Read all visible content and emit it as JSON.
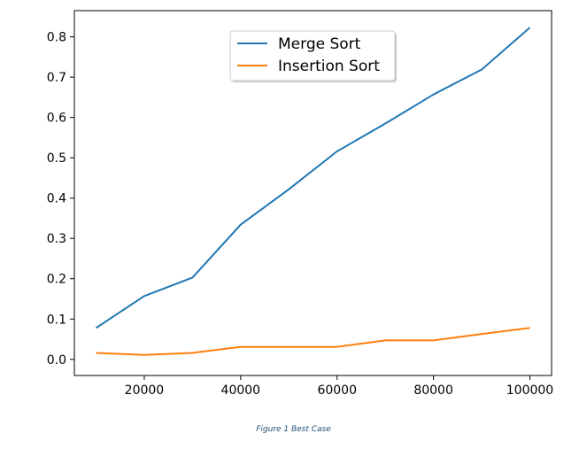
{
  "chart_data": {
    "type": "line",
    "title": "",
    "xlabel": "",
    "ylabel": "",
    "xlim": [
      5500,
      104500
    ],
    "ylim": [
      -0.04,
      0.865
    ],
    "x_ticks": [
      20000,
      40000,
      60000,
      80000,
      100000
    ],
    "y_ticks": [
      0.0,
      0.1,
      0.2,
      0.3,
      0.4,
      0.5,
      0.6,
      0.7,
      0.8
    ],
    "x_tick_labels": [
      "20000",
      "40000",
      "60000",
      "80000",
      "100000"
    ],
    "y_tick_labels": [
      "0.0",
      "0.1",
      "0.2",
      "0.3",
      "0.4",
      "0.5",
      "0.6",
      "0.7",
      "0.8"
    ],
    "grid": false,
    "legend_position": "top-center",
    "x": [
      10000,
      20000,
      30000,
      40000,
      50000,
      60000,
      70000,
      80000,
      90000,
      100000
    ],
    "series": [
      {
        "name": "Merge Sort",
        "color": "#1f77b4",
        "values": [
          0.078,
          0.157,
          0.203,
          0.334,
          0.422,
          0.516,
          0.585,
          0.657,
          0.719,
          0.823
        ]
      },
      {
        "name": "Insertion Sort",
        "color": "#ff7f0e",
        "values": [
          0.016,
          0.011,
          0.016,
          0.031,
          0.031,
          0.031,
          0.047,
          0.047,
          0.063,
          0.078
        ]
      }
    ]
  },
  "caption": "Figure 1 Best Case"
}
